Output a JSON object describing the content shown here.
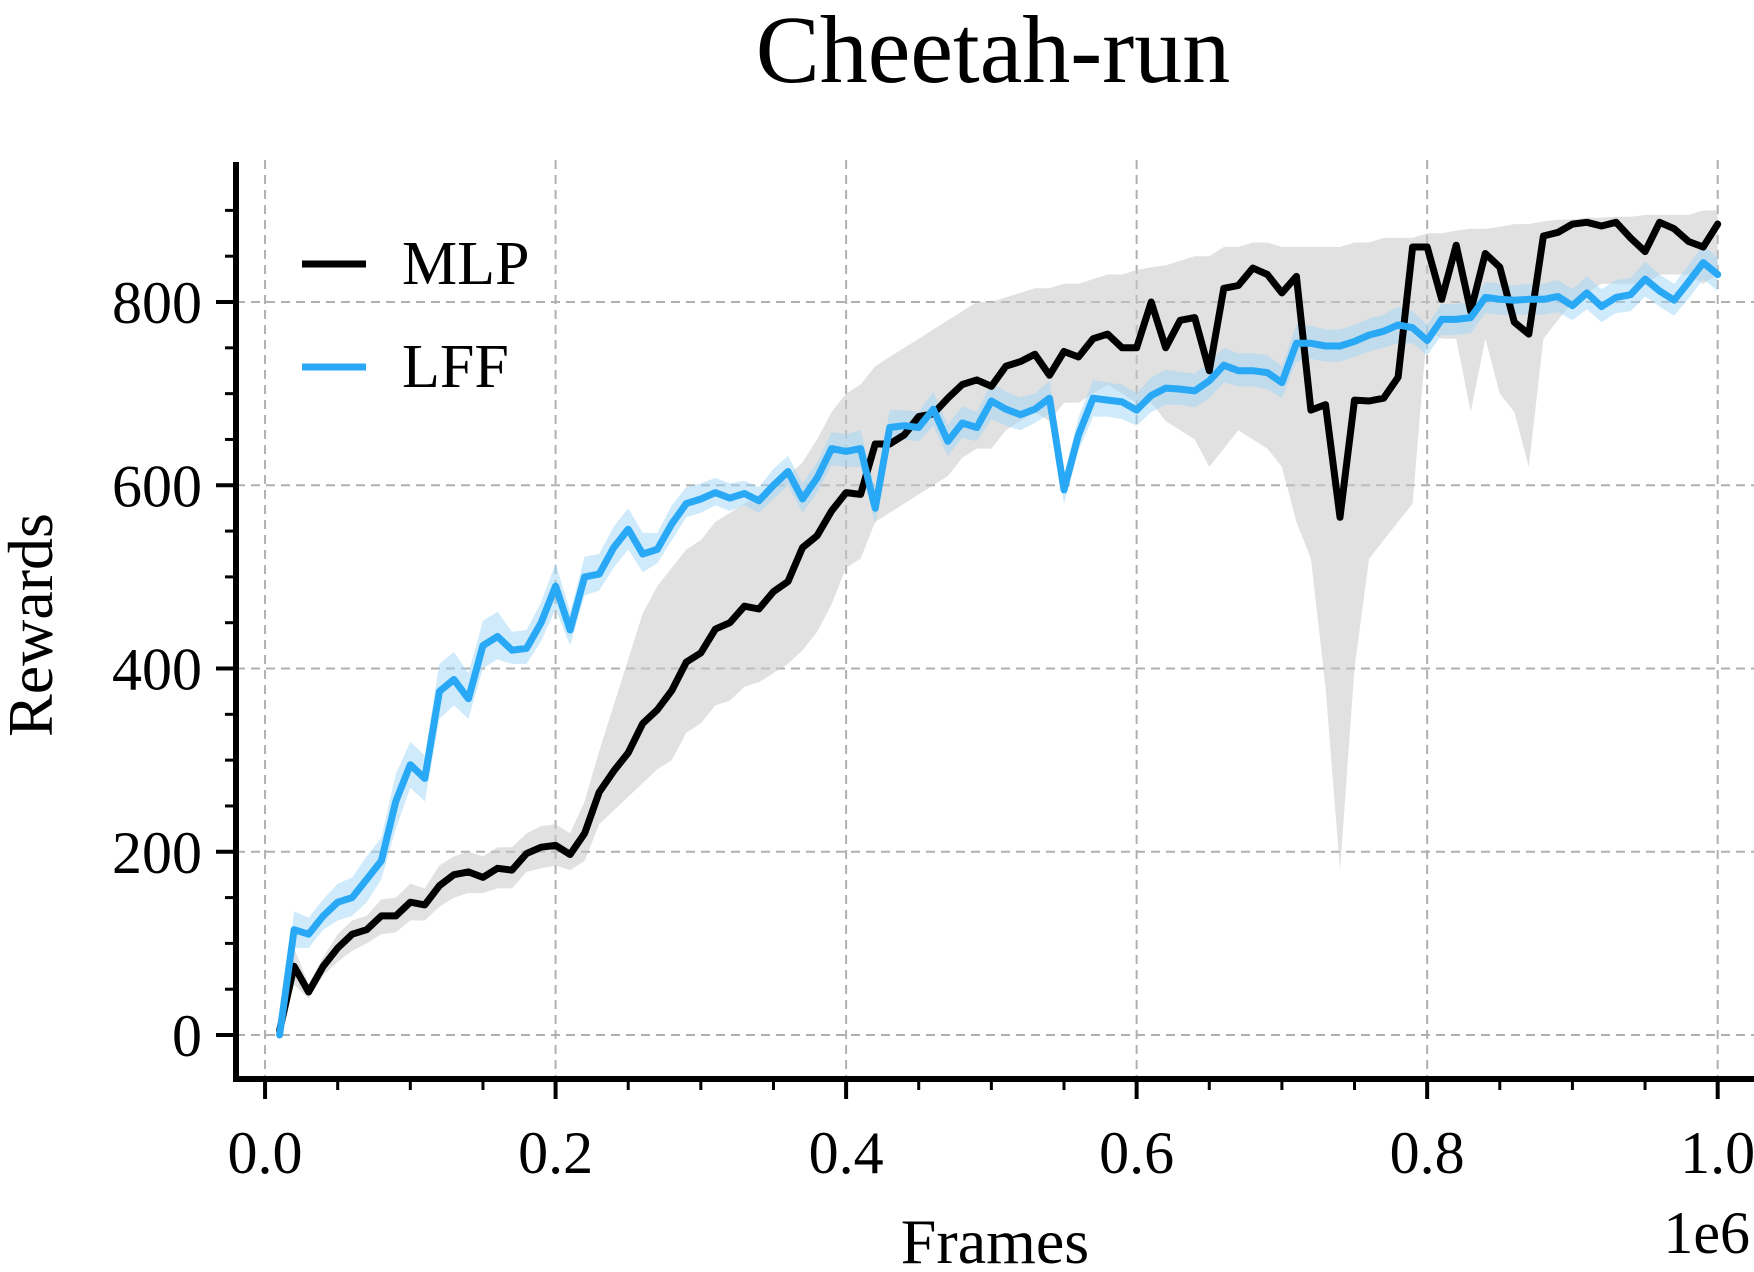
{
  "chart_data": {
    "type": "line",
    "title": "Cheetah-run",
    "xlabel": "Frames",
    "ylabel": "Rewards",
    "x_offset_label": "1e6",
    "xlim": [
      -0.02,
      1.025
    ],
    "ylim": [
      -48,
      955
    ],
    "xticks": [
      0.0,
      0.2,
      0.4,
      0.6,
      0.8,
      1.0
    ],
    "xtick_labels": [
      "0.0",
      "0.2",
      "0.4",
      "0.6",
      "0.8",
      "1.0"
    ],
    "yticks": [
      0,
      200,
      400,
      600,
      800
    ],
    "ytick_labels": [
      "0",
      "200",
      "400",
      "600",
      "800"
    ],
    "grid": true,
    "legend_position": "top-left",
    "colors": {
      "MLP": "#000000",
      "LFF": "#29a8f5",
      "mlp_band": "#c8c8c8",
      "lff_band": "#9fd6f8",
      "grid": "#b0b0b0"
    },
    "x": [
      0.01,
      0.02,
      0.03,
      0.04,
      0.05,
      0.06,
      0.07,
      0.08,
      0.09,
      0.1,
      0.11,
      0.12,
      0.13,
      0.14,
      0.15,
      0.16,
      0.17,
      0.18,
      0.19,
      0.2,
      0.21,
      0.22,
      0.23,
      0.24,
      0.25,
      0.26,
      0.27,
      0.28,
      0.29,
      0.3,
      0.31,
      0.32,
      0.33,
      0.34,
      0.35,
      0.36,
      0.37,
      0.38,
      0.39,
      0.4,
      0.41,
      0.42,
      0.43,
      0.44,
      0.45,
      0.46,
      0.47,
      0.48,
      0.49,
      0.5,
      0.51,
      0.52,
      0.53,
      0.54,
      0.55,
      0.56,
      0.57,
      0.58,
      0.59,
      0.6,
      0.61,
      0.62,
      0.63,
      0.64,
      0.65,
      0.66,
      0.67,
      0.68,
      0.69,
      0.7,
      0.71,
      0.72,
      0.73,
      0.74,
      0.75,
      0.76,
      0.77,
      0.78,
      0.79,
      0.8,
      0.81,
      0.82,
      0.83,
      0.84,
      0.85,
      0.86,
      0.87,
      0.88,
      0.89,
      0.9,
      0.91,
      0.92,
      0.93,
      0.94,
      0.95,
      0.96,
      0.97,
      0.98,
      0.99,
      1.0
    ],
    "series": [
      {
        "name": "MLP",
        "values": [
          5,
          75,
          47,
          75,
          95,
          110,
          115,
          130,
          130,
          145,
          142,
          163,
          175,
          178,
          172,
          182,
          180,
          198,
          205,
          207,
          197,
          220,
          265,
          288,
          308,
          340,
          355,
          376,
          407,
          417,
          443,
          450,
          468,
          465,
          484,
          495,
          532,
          545,
          572,
          592,
          590,
          645,
          645,
          655,
          675,
          678,
          695,
          710,
          715,
          708,
          730,
          735,
          743,
          720,
          746,
          740,
          760,
          765,
          750,
          750,
          800,
          750,
          780,
          783,
          725,
          815,
          818,
          837,
          830,
          810,
          828,
          682,
          688,
          565,
          693,
          692,
          695,
          718,
          860,
          860,
          803,
          862,
          790,
          853,
          838,
          778,
          765,
          872,
          876,
          885,
          887,
          883,
          887,
          870,
          855,
          887,
          880,
          866,
          860,
          885
        ],
        "lower": [
          0,
          55,
          40,
          65,
          80,
          92,
          100,
          110,
          112,
          125,
          125,
          140,
          150,
          155,
          155,
          160,
          160,
          178,
          182,
          185,
          180,
          190,
          230,
          245,
          260,
          275,
          290,
          300,
          330,
          340,
          360,
          365,
          380,
          385,
          395,
          405,
          420,
          440,
          470,
          510,
          520,
          560,
          570,
          580,
          590,
          600,
          610,
          630,
          640,
          640,
          660,
          670,
          680,
          670,
          690,
          690,
          700,
          710,
          700,
          690,
          690,
          670,
          660,
          650,
          620,
          640,
          660,
          650,
          640,
          620,
          560,
          520,
          380,
          180,
          400,
          520,
          540,
          560,
          580,
          770,
          760,
          760,
          680,
          760,
          700,
          680,
          620,
          760,
          780,
          800,
          810,
          820,
          820,
          820,
          820,
          830,
          830,
          830,
          820,
          830
        ],
        "upper": [
          10,
          95,
          55,
          85,
          110,
          125,
          130,
          148,
          150,
          165,
          160,
          185,
          195,
          200,
          195,
          205,
          205,
          220,
          228,
          230,
          220,
          255,
          310,
          360,
          410,
          460,
          490,
          510,
          530,
          540,
          560,
          570,
          580,
          590,
          600,
          610,
          625,
          650,
          680,
          700,
          710,
          730,
          740,
          750,
          760,
          770,
          780,
          790,
          800,
          800,
          805,
          810,
          815,
          815,
          820,
          820,
          825,
          830,
          830,
          835,
          838,
          840,
          845,
          850,
          850,
          860,
          860,
          865,
          865,
          860,
          860,
          860,
          860,
          860,
          865,
          865,
          870,
          870,
          870,
          875,
          875,
          878,
          880,
          880,
          882,
          885,
          885,
          888,
          890,
          890,
          892,
          892,
          893,
          893,
          895,
          895,
          895,
          895,
          900,
          900
        ]
      },
      {
        "name": "LFF",
        "values": [
          0,
          115,
          110,
          130,
          145,
          150,
          170,
          190,
          255,
          295,
          280,
          375,
          388,
          367,
          425,
          435,
          420,
          422,
          450,
          490,
          442,
          500,
          503,
          532,
          552,
          525,
          530,
          558,
          580,
          585,
          592,
          586,
          591,
          583,
          600,
          615,
          585,
          608,
          640,
          637,
          640,
          575,
          663,
          665,
          663,
          683,
          648,
          668,
          663,
          692,
          683,
          677,
          683,
          695,
          595,
          655,
          695,
          693,
          691,
          682,
          698,
          706,
          705,
          703,
          714,
          731,
          725,
          725,
          723,
          712,
          755,
          755,
          752,
          752,
          757,
          764,
          768,
          775,
          772,
          758,
          781,
          781,
          783,
          805,
          803,
          802,
          803,
          803,
          806,
          796,
          810,
          795,
          805,
          808,
          825,
          812,
          802,
          822,
          843,
          830
        ],
        "lower": [
          0,
          95,
          95,
          115,
          125,
          130,
          145,
          170,
          225,
          270,
          255,
          345,
          360,
          345,
          400,
          410,
          405,
          405,
          430,
          465,
          425,
          480,
          485,
          510,
          530,
          505,
          515,
          540,
          565,
          570,
          578,
          572,
          578,
          570,
          585,
          600,
          570,
          592,
          622,
          620,
          620,
          558,
          645,
          650,
          648,
          665,
          632,
          652,
          648,
          672,
          665,
          660,
          668,
          678,
          580,
          638,
          675,
          675,
          672,
          665,
          680,
          688,
          688,
          685,
          695,
          712,
          708,
          708,
          705,
          695,
          735,
          738,
          735,
          735,
          740,
          746,
          750,
          755,
          755,
          742,
          764,
          764,
          766,
          788,
          786,
          786,
          786,
          786,
          789,
          780,
          792,
          778,
          788,
          790,
          806,
          795,
          785,
          804,
          825,
          812
        ],
        "upper": [
          5,
          135,
          128,
          148,
          165,
          172,
          195,
          215,
          285,
          320,
          305,
          405,
          418,
          395,
          452,
          462,
          440,
          442,
          472,
          515,
          462,
          522,
          525,
          555,
          575,
          548,
          548,
          578,
          598,
          602,
          608,
          602,
          605,
          598,
          618,
          632,
          602,
          625,
          658,
          656,
          660,
          595,
          682,
          682,
          680,
          702,
          666,
          686,
          680,
          712,
          702,
          696,
          700,
          714,
          612,
          674,
          715,
          712,
          710,
          700,
          718,
          726,
          724,
          722,
          734,
          750,
          744,
          744,
          742,
          730,
          775,
          774,
          770,
          770,
          775,
          782,
          786,
          795,
          790,
          775,
          798,
          798,
          800,
          822,
          820,
          818,
          820,
          820,
          824,
          814,
          828,
          814,
          824,
          826,
          844,
          830,
          820,
          840,
          862,
          848
        ]
      }
    ]
  }
}
